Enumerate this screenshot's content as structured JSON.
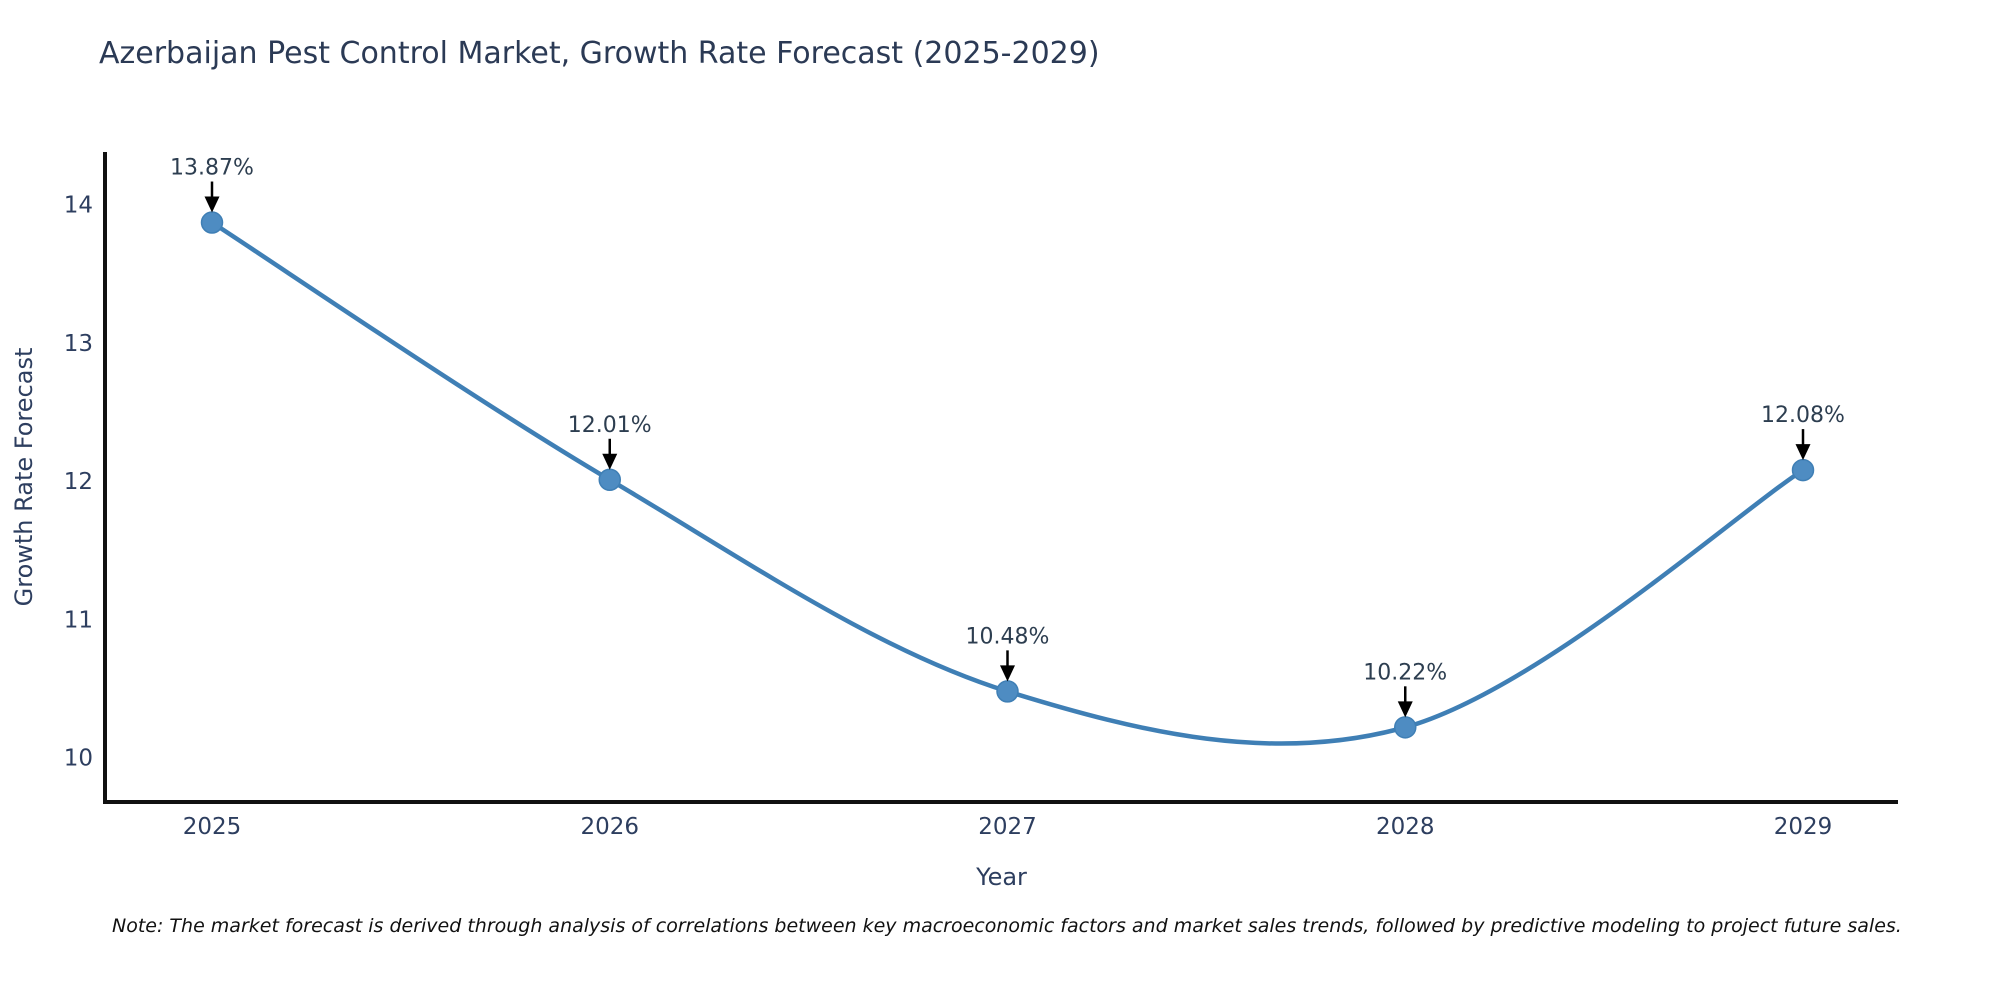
{
  "title": "Azerbaijan Pest Control Market, Growth Rate Forecast (2025-2029)",
  "note": "Note: The market forecast is derived through analysis of correlations between key macroeconomic factors and market sales trends, followed by predictive modeling to project future sales.",
  "chart_data": {
    "type": "line",
    "curve": "spline",
    "title": "Azerbaijan Pest Control Market, Growth Rate Forecast (2025-2029)",
    "xlabel": "Year",
    "ylabel": "Growth Rate Forecast",
    "categories": [
      "2025",
      "2026",
      "2027",
      "2028",
      "2029"
    ],
    "values": [
      13.87,
      12.01,
      10.48,
      10.22,
      12.08
    ],
    "point_labels": [
      "13.87%",
      "12.01%",
      "10.48%",
      "10.22%",
      "12.08%"
    ],
    "yticks": [
      10,
      11,
      12,
      13,
      14
    ],
    "ylim": [
      9.68,
      14.38
    ],
    "grid": false,
    "legend": false,
    "line_color": "#3f7fb5",
    "marker_color": "#4e8cc2",
    "axis_color": "#111111",
    "tick_color": "#2d3e5f",
    "axis_title_color": "#2d3e5f",
    "annotation_text_color": "#2d3e50",
    "annotation_arrow_color": "#000000",
    "background_color": "#ffffff"
  }
}
